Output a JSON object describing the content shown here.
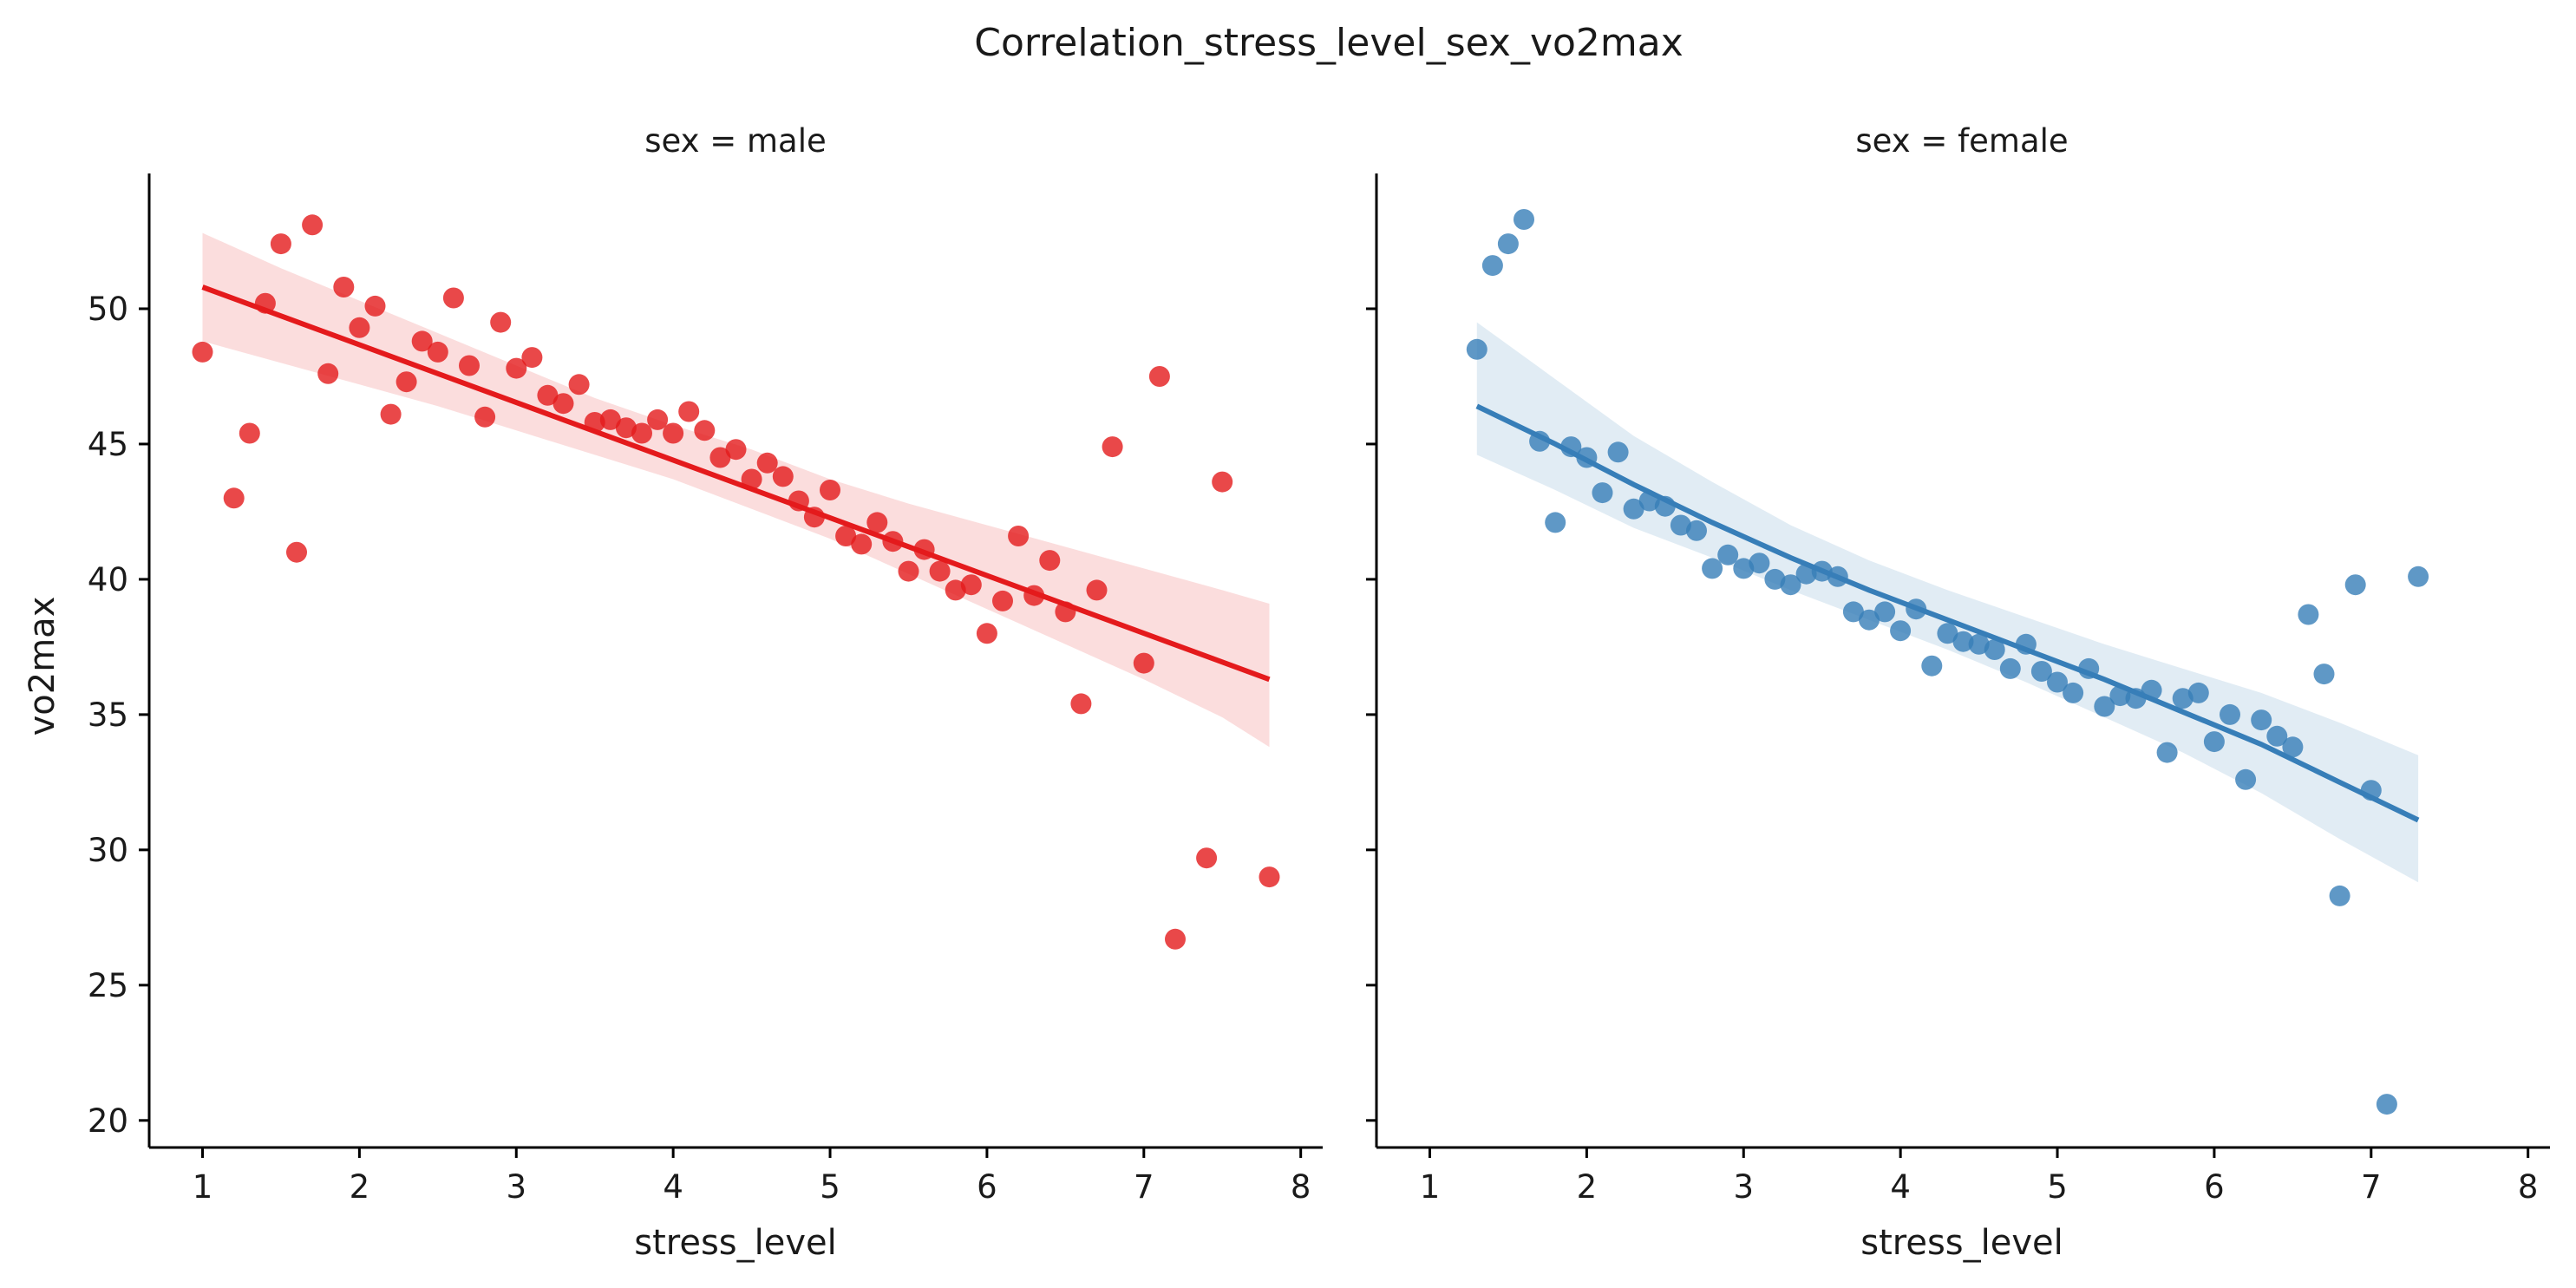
{
  "chart_data": {
    "type": "scatter",
    "title": "Correlation_stress_level_sex_vo2max",
    "ylabel": "vo2max",
    "ylim": [
      19,
      55
    ],
    "yticks": [
      20,
      25,
      30,
      35,
      40,
      45,
      50
    ],
    "grid": false,
    "sharey": true,
    "facets": [
      {
        "title": "sex = male",
        "xlabel": "stress_level",
        "xlim": [
          0.66,
          8.14
        ],
        "xticks": [
          1,
          2,
          3,
          4,
          5,
          6,
          7,
          8
        ],
        "color": "#e41a1c",
        "points": [
          [
            1.0,
            48.4
          ],
          [
            1.2,
            43.0
          ],
          [
            1.3,
            45.4
          ],
          [
            1.4,
            50.2
          ],
          [
            1.5,
            52.4
          ],
          [
            1.6,
            41.0
          ],
          [
            1.7,
            53.1
          ],
          [
            1.8,
            47.6
          ],
          [
            1.9,
            50.8
          ],
          [
            2.0,
            49.3
          ],
          [
            2.1,
            50.1
          ],
          [
            2.2,
            46.1
          ],
          [
            2.3,
            47.3
          ],
          [
            2.4,
            48.8
          ],
          [
            2.5,
            48.4
          ],
          [
            2.6,
            50.4
          ],
          [
            2.7,
            47.9
          ],
          [
            2.8,
            46.0
          ],
          [
            2.9,
            49.5
          ],
          [
            3.0,
            47.8
          ],
          [
            3.1,
            48.2
          ],
          [
            3.2,
            46.8
          ],
          [
            3.3,
            46.5
          ],
          [
            3.4,
            47.2
          ],
          [
            3.5,
            45.8
          ],
          [
            3.6,
            45.9
          ],
          [
            3.7,
            45.6
          ],
          [
            3.8,
            45.4
          ],
          [
            3.9,
            45.9
          ],
          [
            4.0,
            45.4
          ],
          [
            4.1,
            46.2
          ],
          [
            4.2,
            45.5
          ],
          [
            4.3,
            44.5
          ],
          [
            4.4,
            44.8
          ],
          [
            4.5,
            43.7
          ],
          [
            4.6,
            44.3
          ],
          [
            4.7,
            43.8
          ],
          [
            4.8,
            42.9
          ],
          [
            4.9,
            42.3
          ],
          [
            5.0,
            43.3
          ],
          [
            5.1,
            41.6
          ],
          [
            5.2,
            41.3
          ],
          [
            5.3,
            42.1
          ],
          [
            5.4,
            41.4
          ],
          [
            5.5,
            40.3
          ],
          [
            5.6,
            41.1
          ],
          [
            5.7,
            40.3
          ],
          [
            5.8,
            39.6
          ],
          [
            5.9,
            39.8
          ],
          [
            6.0,
            38.0
          ],
          [
            6.1,
            39.2
          ],
          [
            6.2,
            41.6
          ],
          [
            6.3,
            39.4
          ],
          [
            6.4,
            40.7
          ],
          [
            6.5,
            38.8
          ],
          [
            6.6,
            35.4
          ],
          [
            6.7,
            39.6
          ],
          [
            6.8,
            44.9
          ],
          [
            7.0,
            36.9
          ],
          [
            7.1,
            47.5
          ],
          [
            7.2,
            26.7
          ],
          [
            7.4,
            29.7
          ],
          [
            7.5,
            43.6
          ],
          [
            7.8,
            29.0
          ]
        ],
        "regression": {
          "x": [
            1.0,
            7.8
          ],
          "y": [
            50.8,
            36.3
          ]
        },
        "ci_band": {
          "x": [
            1.0,
            1.5,
            2.0,
            2.5,
            3.0,
            3.5,
            4.0,
            4.5,
            5.0,
            5.5,
            6.0,
            6.5,
            7.0,
            7.5,
            7.8
          ],
          "upper": [
            52.8,
            51.5,
            50.3,
            49.1,
            47.9,
            46.7,
            45.7,
            44.8,
            43.7,
            42.8,
            42.0,
            41.2,
            40.4,
            39.6,
            39.1
          ],
          "lower": [
            48.8,
            48.0,
            47.2,
            46.4,
            45.5,
            44.6,
            43.7,
            42.6,
            41.5,
            40.2,
            38.9,
            37.6,
            36.3,
            34.9,
            33.8
          ]
        }
      },
      {
        "title": "sex = female",
        "xlabel": "stress_level",
        "xlim": [
          0.66,
          8.14
        ],
        "xticks": [
          1,
          2,
          3,
          4,
          5,
          6,
          7,
          8
        ],
        "color": "#377eb8",
        "points": [
          [
            1.3,
            48.5
          ],
          [
            1.4,
            51.6
          ],
          [
            1.5,
            52.4
          ],
          [
            1.6,
            53.3
          ],
          [
            1.7,
            45.1
          ],
          [
            1.8,
            42.1
          ],
          [
            1.9,
            44.9
          ],
          [
            2.0,
            44.5
          ],
          [
            2.1,
            43.2
          ],
          [
            2.2,
            44.7
          ],
          [
            2.3,
            42.6
          ],
          [
            2.4,
            42.9
          ],
          [
            2.5,
            42.7
          ],
          [
            2.6,
            42.0
          ],
          [
            2.7,
            41.8
          ],
          [
            2.8,
            40.4
          ],
          [
            2.9,
            40.9
          ],
          [
            3.0,
            40.4
          ],
          [
            3.1,
            40.6
          ],
          [
            3.2,
            40.0
          ],
          [
            3.3,
            39.8
          ],
          [
            3.4,
            40.2
          ],
          [
            3.5,
            40.3
          ],
          [
            3.6,
            40.1
          ],
          [
            3.7,
            38.8
          ],
          [
            3.8,
            38.5
          ],
          [
            3.9,
            38.8
          ],
          [
            4.0,
            38.1
          ],
          [
            4.1,
            38.9
          ],
          [
            4.2,
            36.8
          ],
          [
            4.3,
            38.0
          ],
          [
            4.4,
            37.7
          ],
          [
            4.5,
            37.6
          ],
          [
            4.6,
            37.4
          ],
          [
            4.7,
            36.7
          ],
          [
            4.8,
            37.6
          ],
          [
            4.9,
            36.6
          ],
          [
            5.0,
            36.2
          ],
          [
            5.1,
            35.8
          ],
          [
            5.2,
            36.7
          ],
          [
            5.3,
            35.3
          ],
          [
            5.4,
            35.7
          ],
          [
            5.5,
            35.6
          ],
          [
            5.6,
            35.9
          ],
          [
            5.7,
            33.6
          ],
          [
            5.8,
            35.6
          ],
          [
            5.9,
            35.8
          ],
          [
            6.0,
            34.0
          ],
          [
            6.1,
            35.0
          ],
          [
            6.2,
            32.6
          ],
          [
            6.3,
            34.8
          ],
          [
            6.4,
            34.2
          ],
          [
            6.5,
            33.8
          ],
          [
            6.6,
            38.7
          ],
          [
            6.7,
            36.5
          ],
          [
            6.8,
            28.3
          ],
          [
            6.9,
            39.8
          ],
          [
            7.0,
            32.2
          ],
          [
            7.1,
            20.6
          ],
          [
            7.3,
            40.1
          ]
        ],
        "regression": {
          "x": [
            1.3,
            1.8,
            2.3,
            2.8,
            3.3,
            3.8,
            4.3,
            4.8,
            5.3,
            5.8,
            6.3,
            6.8,
            7.3
          ],
          "y": [
            46.4,
            45.0,
            43.5,
            42.1,
            40.8,
            39.6,
            38.5,
            37.4,
            36.3,
            35.1,
            33.9,
            32.5,
            31.1
          ]
        },
        "ci_band": {
          "x": [
            1.3,
            1.8,
            2.3,
            2.8,
            3.3,
            3.8,
            4.3,
            4.8,
            5.3,
            5.8,
            6.3,
            6.8,
            7.3
          ],
          "upper": [
            49.5,
            47.4,
            45.3,
            43.6,
            42.0,
            40.7,
            39.6,
            38.6,
            37.6,
            36.7,
            35.8,
            34.7,
            33.5
          ],
          "lower": [
            44.6,
            43.3,
            41.9,
            40.8,
            39.6,
            38.5,
            37.4,
            36.2,
            34.9,
            33.6,
            32.1,
            30.4,
            28.8
          ]
        }
      }
    ]
  }
}
